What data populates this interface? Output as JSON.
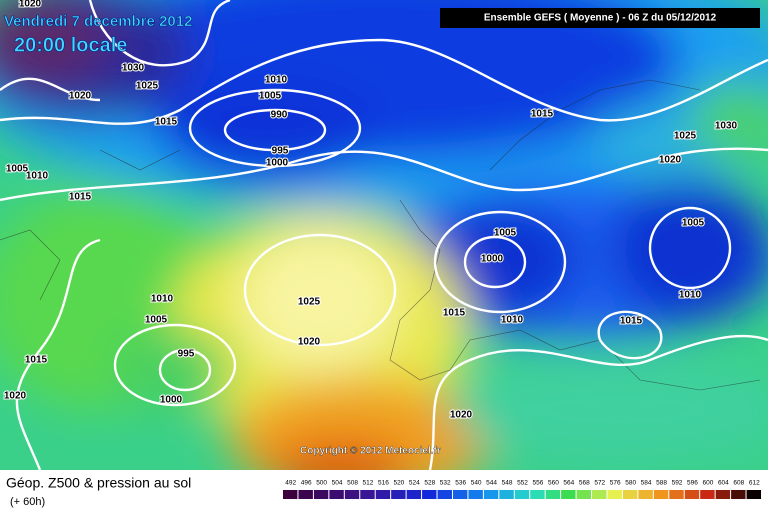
{
  "header": {
    "date": "Vendredi 7 decembre 2012",
    "time": "20:00 locale",
    "model": "Ensemble GEFS ( Moyenne )  -  06 Z du 05/12/2012"
  },
  "isobar_labels": [
    "1020",
    "1030",
    "1025",
    "1020",
    "1010",
    "1005",
    "990",
    "1015",
    "995",
    "1000",
    "1005",
    "1010",
    "1015",
    "1015",
    "1025",
    "1030",
    "1020",
    "1005",
    "1000",
    "1005",
    "1010",
    "1015",
    "1010",
    "1015",
    "1010",
    "1005",
    "1025",
    "1020",
    "1015",
    "995",
    "1000",
    "1020",
    "1020"
  ],
  "copyright": "Copyright © 2012 Meteociel.fr",
  "footer": {
    "title": "Géop. Z500 & pression au sol",
    "lead": "(+ 60h)"
  },
  "scale": [
    492,
    496,
    500,
    504,
    508,
    512,
    516,
    520,
    524,
    528,
    532,
    536,
    540,
    544,
    548,
    552,
    556,
    560,
    564,
    568,
    572,
    576,
    580,
    584,
    588,
    592,
    596,
    600,
    604,
    608,
    612
  ]
}
